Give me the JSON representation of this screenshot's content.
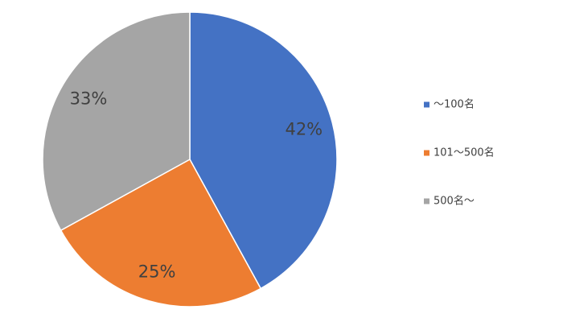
{
  "chart_data": {
    "type": "pie",
    "categories": [
      "～100名",
      "101～500名",
      "500名～"
    ],
    "values": [
      42,
      25,
      33
    ],
    "value_labels": [
      "42%",
      "25%",
      "33%"
    ],
    "colors": [
      "#4472c4",
      "#ed7d31",
      "#a5a5a5"
    ],
    "legend": "right"
  }
}
